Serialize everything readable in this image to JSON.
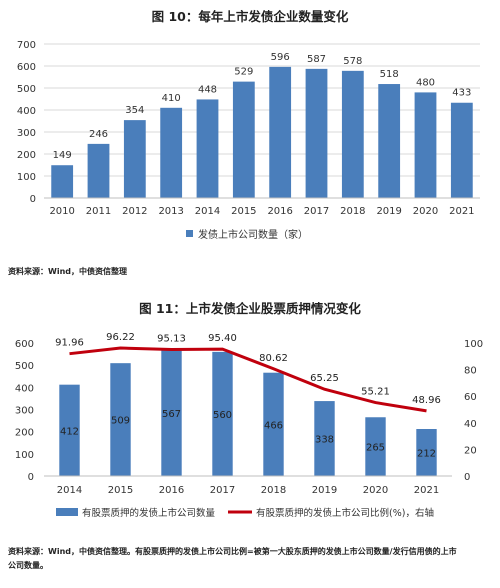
{
  "chart1": {
    "title": "图 10：每年上市发债企业数量变化",
    "legend": "发债上市公司数量（家）",
    "source": "资料来源：Wind，中债资信整理",
    "colors": {
      "bar": "#4a7ebb"
    }
  },
  "chart2": {
    "title": "图 11：上市发债企业股票质押情况变化",
    "legend_bar": "有股票质押的发债上市公司数量",
    "legend_line": "有股票质押的发债上市公司比例(%)，右轴",
    "source_line1": "资料来源：Wind，中债资信整理。有股票质押的发债上市公司比例=被第一大股东质押的发债上市公司数量/发行信用债的上市",
    "source_line2": "公司数量。",
    "colors": {
      "bar": "#4a7ebb",
      "line": "#c0000d"
    }
  },
  "chart_data": [
    {
      "type": "bar",
      "title": "图 10：每年上市发债企业数量变化",
      "categories": [
        "2010",
        "2011",
        "2012",
        "2013",
        "2014",
        "2015",
        "2016",
        "2017",
        "2018",
        "2019",
        "2020",
        "2021"
      ],
      "series": [
        {
          "name": "发债上市公司数量（家）",
          "values": [
            149,
            246,
            354,
            410,
            448,
            529,
            596,
            587,
            578,
            518,
            480,
            433
          ]
        }
      ],
      "yticks": [
        "0",
        "100",
        "200",
        "300",
        "400",
        "500",
        "600",
        "700"
      ],
      "ylim": [
        0,
        700
      ],
      "grid": true,
      "legend": "bottom"
    },
    {
      "type": "bar",
      "title": "图 11：上市发债企业股票质押情况变化",
      "categories": [
        "2014",
        "2015",
        "2016",
        "2017",
        "2018",
        "2019",
        "2020",
        "2021"
      ],
      "series": [
        {
          "name": "有股票质押的发债上市公司数量",
          "type": "bar",
          "axis": "left",
          "values": [
            412,
            509,
            567,
            560,
            466,
            338,
            265,
            212
          ],
          "labels": [
            "412",
            "509",
            "567",
            "560",
            "466",
            "338",
            "265",
            "212"
          ]
        },
        {
          "name": "有股票质押的发债上市公司比例(%)，右轴",
          "type": "line",
          "axis": "right",
          "values": [
            91.96,
            96.22,
            95.13,
            95.4,
            80.62,
            65.25,
            55.21,
            48.96
          ],
          "labels": [
            "91.96",
            "96.22",
            "95.13",
            "95.40",
            "80.62",
            "65.25",
            "55.21",
            "48.96"
          ]
        }
      ],
      "yticks_left": [
        "0",
        "100",
        "200",
        "300",
        "400",
        "500",
        "600"
      ],
      "yticks_right": [
        "0",
        "20",
        "40",
        "60",
        "80",
        "100"
      ],
      "ylim_left": [
        0,
        600
      ],
      "ylim_right": [
        0,
        100
      ],
      "grid": false,
      "legend": "bottom"
    }
  ]
}
